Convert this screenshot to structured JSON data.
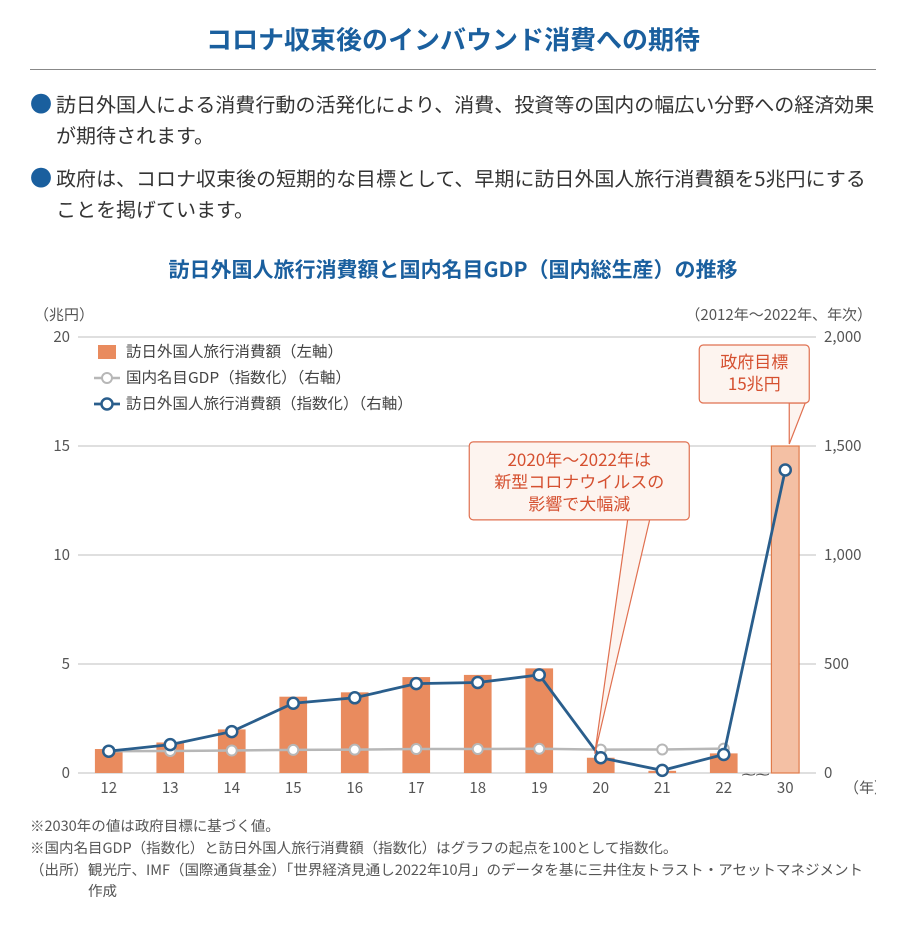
{
  "title": "コロナ収束後のインバウンド消費への期待",
  "bullets": [
    "訪日外国人による消費行動の活発化により、消費、投資等の国内の幅広い分野への経済効果が期待されます。",
    "政府は、コロナ収束後の短期的な目標として、早期に訪日外国人旅行消費額を5兆円にすることを掲げています。"
  ],
  "chart": {
    "title": "訪日外国人旅行消費額と国内名目GDP（国内総生産）の推移",
    "left_unit": "（兆円）",
    "period_label": "（2012年〜2022年、年次）",
    "x_axis_unit": "（年）",
    "legend": {
      "bar": "訪日外国人旅行消費額（左軸）",
      "gdp": "国内名目GDP（指数化）（右軸）",
      "inbound_idx": "訪日外国人旅行消費額（指数化）（右軸）"
    },
    "left_axis": {
      "min": 0,
      "max": 20,
      "ticks": [
        0,
        5,
        10,
        15,
        20
      ]
    },
    "right_axis": {
      "min": 0,
      "max": 2000,
      "ticks": [
        0,
        500,
        1000,
        1500,
        2000
      ]
    },
    "categories": [
      "12",
      "13",
      "14",
      "15",
      "16",
      "17",
      "18",
      "19",
      "20",
      "21",
      "22",
      "30"
    ],
    "bar_values": [
      1.1,
      1.4,
      2.0,
      3.5,
      3.7,
      4.4,
      4.5,
      4.8,
      0.7,
      0.1,
      0.9,
      15.0
    ],
    "inbound_index": [
      100,
      130,
      190,
      320,
      345,
      410,
      415,
      450,
      70,
      12,
      85,
      1390
    ],
    "gdp_index": [
      100,
      101,
      103,
      106,
      107,
      110,
      110,
      111,
      107,
      108,
      112
    ],
    "colors": {
      "bar": "#e98b5e",
      "bar_target": "#f4c0a4",
      "bar_target_stroke": "#e07b4a",
      "gdp_line": "#b7b7b7",
      "gdp_marker_fill": "#ffffff",
      "inbound_line": "#2a5e8c",
      "inbound_marker_fill": "#ffffff",
      "grid": "#bfbfbf",
      "axis_text": "#555555",
      "bg": "#ffffff"
    },
    "bar_width_ratio": 0.45,
    "callouts": {
      "covid": {
        "lines": [
          "2020年〜2022年は",
          "新型コロナウイルスの",
          "影響で大幅減"
        ]
      },
      "target": {
        "lines": [
          "政府目標",
          "15兆円"
        ]
      }
    },
    "break_marker": "〜〜"
  },
  "notes": {
    "n1": "※2030年の値は政府目標に基づく値。",
    "n2": "※国内名目GDP（指数化）と訪日外国人旅行消費額（指数化）はグラフの起点を100として指数化。",
    "src_label": "（出所）",
    "src_text": "観光庁、IMF（国際通貨基金）「世界経済見通し2022年10月」のデータを基に三井住友トラスト・アセットマネジメント作成"
  }
}
